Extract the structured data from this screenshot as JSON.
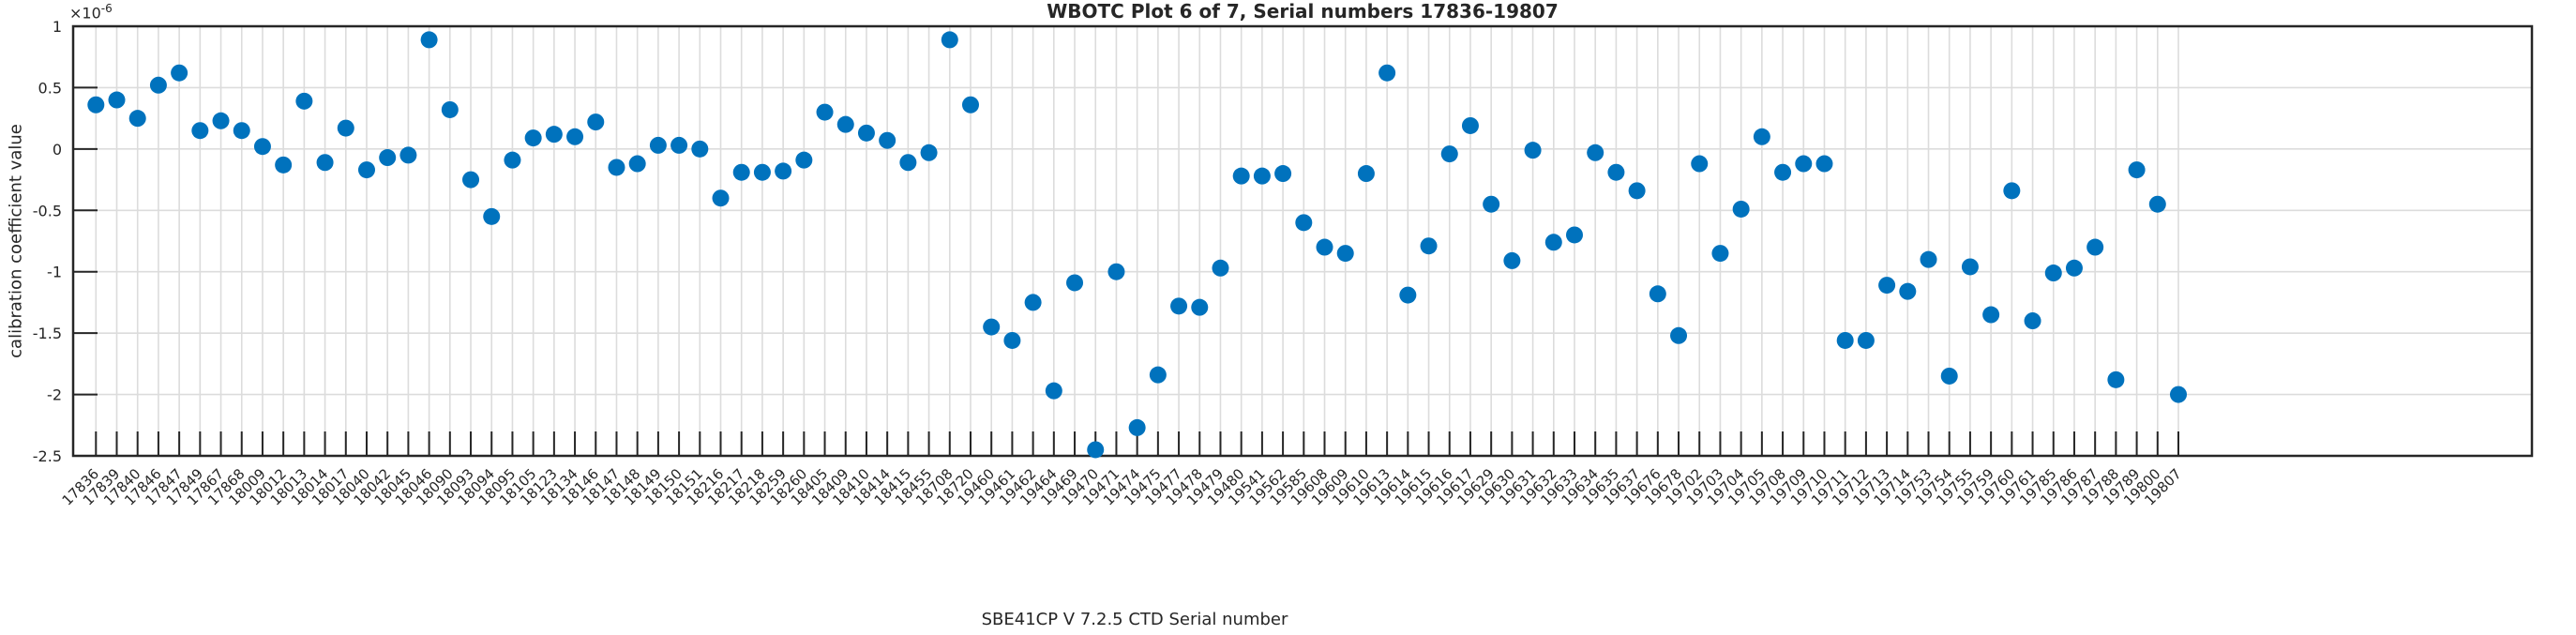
{
  "chart_data": {
    "type": "scatter",
    "title": "WBOTC Plot 6 of 7, Serial numbers 17836-19807",
    "xlabel": "SBE41CP V 7.2.5 CTD Serial number",
    "ylabel": "calibration coefficient value",
    "y_offset_base": "×10",
    "y_offset_exp": "-6",
    "ylim": [
      -2.5,
      1
    ],
    "grid": true,
    "legend": "none",
    "marker_style": "filled-circle",
    "colors": {
      "marker": "#0072BD",
      "axis": "#262626",
      "grid": "#dcdcdc",
      "background": "#ffffff"
    },
    "yticks": [
      {
        "v": 1,
        "label": "1"
      },
      {
        "v": 0.5,
        "label": "0.5"
      },
      {
        "v": 0,
        "label": "0"
      },
      {
        "v": -0.5,
        "label": "-0.5"
      },
      {
        "v": -1,
        "label": "-1"
      },
      {
        "v": -1.5,
        "label": "-1.5"
      },
      {
        "v": -2,
        "label": "-2"
      },
      {
        "v": -2.5,
        "label": "-2.5"
      }
    ],
    "x": [
      "17836",
      "17839",
      "17840",
      "17846",
      "17847",
      "17849",
      "17867",
      "17868",
      "18009",
      "18012",
      "18013",
      "18014",
      "18017",
      "18040",
      "18042",
      "18045",
      "18046",
      "18090",
      "18093",
      "18094",
      "18095",
      "18105",
      "18123",
      "18134",
      "18146",
      "18147",
      "18148",
      "18149",
      "18150",
      "18151",
      "18216",
      "18217",
      "18218",
      "18259",
      "18260",
      "18405",
      "18409",
      "18410",
      "18414",
      "18415",
      "18455",
      "18708",
      "18720",
      "19460",
      "19461",
      "19462",
      "19464",
      "19469",
      "19470",
      "19471",
      "19474",
      "19475",
      "19477",
      "19478",
      "19479",
      "19480",
      "19541",
      "19562",
      "19585",
      "19608",
      "19609",
      "19610",
      "19613",
      "19614",
      "19615",
      "19616",
      "19617",
      "19629",
      "19630",
      "19631",
      "19632",
      "19633",
      "19634",
      "19635",
      "19637",
      "19676",
      "19678",
      "19702",
      "19703",
      "19704",
      "19705",
      "19708",
      "19709",
      "19710",
      "19711",
      "19712",
      "19713",
      "19714",
      "19753",
      "19754",
      "19755",
      "19759",
      "19760",
      "19761",
      "19785",
      "19786",
      "19787",
      "19788",
      "19789",
      "19800",
      "19807"
    ],
    "values": [
      0.36,
      0.4,
      0.25,
      0.52,
      0.62,
      0.15,
      0.23,
      0.15,
      0.02,
      -0.13,
      0.39,
      -0.11,
      0.17,
      -0.17,
      -0.07,
      -0.05,
      0.89,
      0.32,
      -0.25,
      -0.55,
      -0.09,
      0.09,
      0.12,
      0.1,
      0.22,
      -0.15,
      -0.12,
      0.03,
      0.03,
      0.0,
      -0.4,
      -0.19,
      -0.19,
      -0.18,
      -0.09,
      0.3,
      0.2,
      0.13,
      0.07,
      -0.11,
      -0.03,
      0.89,
      0.36,
      -1.45,
      -1.56,
      -1.25,
      -1.97,
      -1.09,
      -2.45,
      -1.0,
      -2.27,
      -1.84,
      -1.28,
      -1.29,
      -0.97,
      -0.22,
      -0.22,
      -0.2,
      -0.6,
      -0.8,
      -0.85,
      -0.2,
      0.62,
      -1.19,
      -0.79,
      -0.04,
      0.19,
      -0.45,
      -0.91,
      -0.01,
      -0.76,
      -0.7,
      -0.03,
      -0.19,
      -0.34,
      -1.18,
      -1.52,
      -0.12,
      -0.85,
      -0.49,
      0.1,
      -0.19,
      -0.12,
      -0.12,
      -1.56,
      -1.56,
      -1.11,
      -1.16,
      -0.9,
      -1.85,
      -0.96,
      -1.35,
      -0.34,
      -1.4,
      -1.01,
      -0.97,
      -0.8,
      -1.88,
      -0.17,
      -0.45,
      -2.0
    ]
  }
}
